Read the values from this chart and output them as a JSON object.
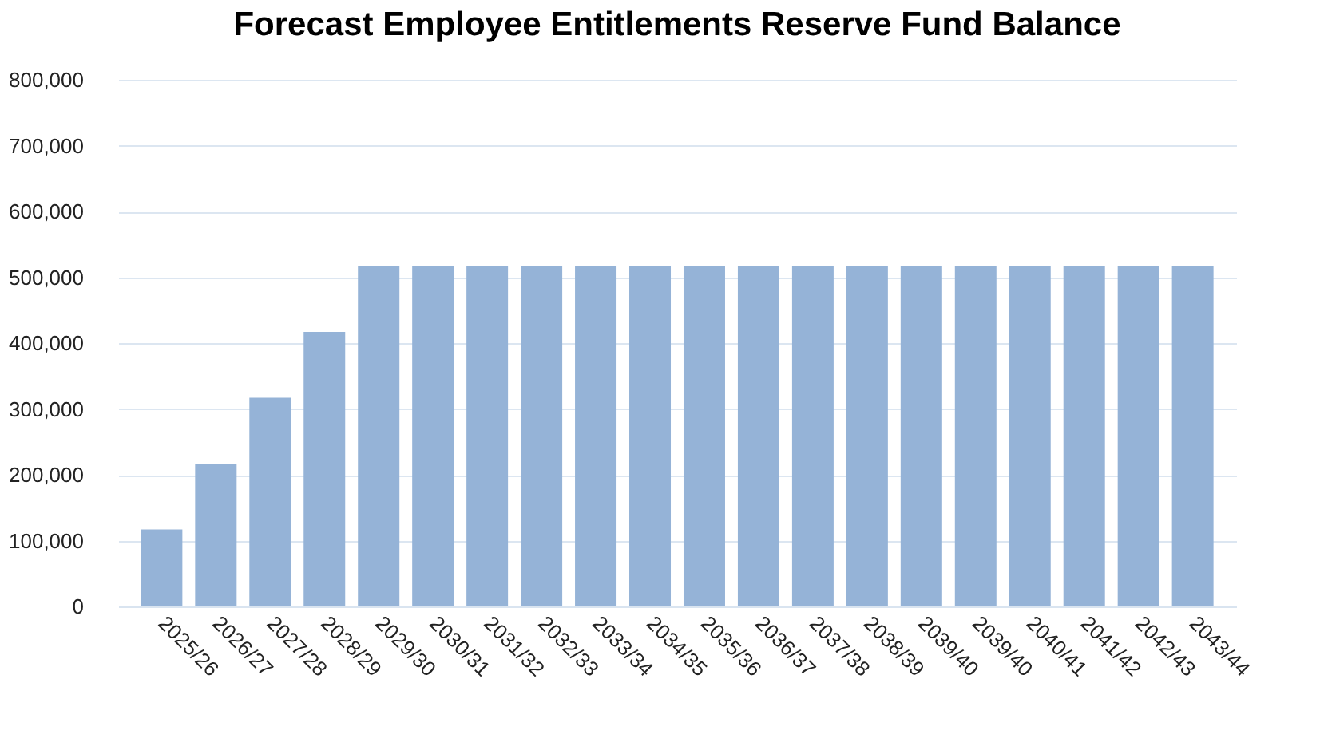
{
  "chart_data": {
    "type": "bar",
    "title": "Forecast Employee Entitlements Reserve Fund Balance",
    "categories": [
      "2025/26",
      "2026/27",
      "2027/28",
      "2028/29",
      "2029/30",
      "2030/31",
      "2031/32",
      "2032/33",
      "2033/34",
      "2034/35",
      "2035/36",
      "2036/37",
      "2037/38",
      "2038/39",
      "2039/40",
      "2039/40",
      "2040/41",
      "2041/42",
      "2042/43",
      "2043/44"
    ],
    "values": [
      117000,
      217000,
      317000,
      417000,
      517000,
      517000,
      517000,
      517000,
      517000,
      517000,
      517000,
      517000,
      517000,
      517000,
      517000,
      517000,
      517000,
      517000,
      517000,
      517000
    ],
    "color": "#95b3d7",
    "ylim": [
      0,
      800000
    ],
    "yticks": [
      0,
      {
        "value": 100000,
        "label": "100,000"
      },
      {
        "value": 200000,
        "label": "200,000"
      },
      {
        "value": 300000,
        "label": "300,000"
      },
      {
        "value": 400000,
        "label": "400,000"
      },
      {
        "value": 500000,
        "label": "500,000"
      },
      {
        "value": 600000,
        "label": "600,000"
      },
      {
        "value": 700000,
        "label": "700,000"
      },
      {
        "value": 800000,
        "label": "800,000"
      }
    ],
    "grid": "y"
  }
}
